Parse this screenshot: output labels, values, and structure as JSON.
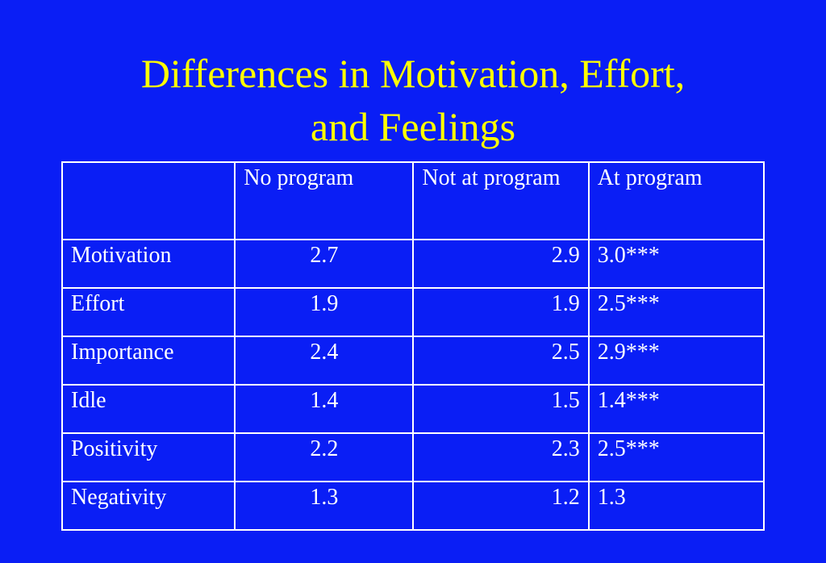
{
  "title": {
    "line1": "Differences in Motivation, Effort,",
    "line2": "and Feelings"
  },
  "table": {
    "headers": [
      "",
      "No program",
      "Not at program",
      "At program"
    ],
    "rows": [
      {
        "label": "Motivation",
        "no_program": "2.7",
        "not_at_program": "2.9",
        "at_program": "3.0***"
      },
      {
        "label": "Effort",
        "no_program": "1.9",
        "not_at_program": "1.9",
        "at_program": "2.5***"
      },
      {
        "label": "Importance",
        "no_program": "2.4",
        "not_at_program": "2.5",
        "at_program": "2.9***"
      },
      {
        "label": "Idle",
        "no_program": "1.4",
        "not_at_program": "1.5",
        "at_program": "1.4***"
      },
      {
        "label": "Positivity",
        "no_program": "2.2",
        "not_at_program": "2.3",
        "at_program": "2.5***"
      },
      {
        "label": "Negativity",
        "no_program": "1.3",
        "not_at_program": "1.2",
        "at_program": "1.3"
      }
    ]
  },
  "colors": {
    "background": "#0a1ef5",
    "title": "#ffff00",
    "table_text": "#ffffff"
  }
}
